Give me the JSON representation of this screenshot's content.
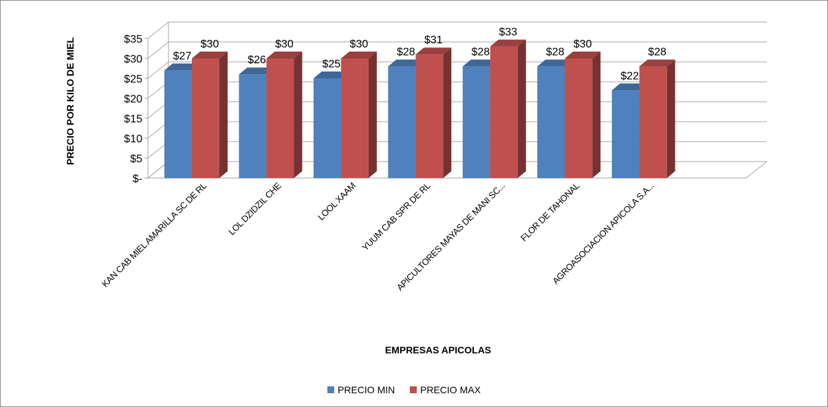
{
  "chart_data": {
    "type": "bar",
    "three_d": true,
    "title": "",
    "xlabel": "EMPRESAS  APICOLAS",
    "ylabel": "PRECIO POR KILO DE MIEL",
    "ylim": [
      0,
      35
    ],
    "yticks": [
      {
        "value": 0,
        "label": "$-"
      },
      {
        "value": 5,
        "label": "$5"
      },
      {
        "value": 10,
        "label": "$10"
      },
      {
        "value": 15,
        "label": "$15"
      },
      {
        "value": 20,
        "label": "$20"
      },
      {
        "value": 25,
        "label": "$25"
      },
      {
        "value": 30,
        "label": "$30"
      },
      {
        "value": 35,
        "label": "$35"
      }
    ],
    "grid": true,
    "legend_position": "bottom",
    "categories": [
      "KAN CAB MIEL AMARILLA SC DE RL",
      "LOL DZIDZIL CHE",
      "LOOL XAAM",
      "YUUM CAB SPR DE RL",
      "APICULTORES MAYAS DE MANI SC...",
      "FLOR DE TAHONAL",
      "AGROASOCIACION APICOLA S.A..."
    ],
    "series": [
      {
        "name": "PRECIO MIN",
        "color": "#4f81bd",
        "values": [
          27,
          26,
          25,
          28,
          28,
          28,
          22
        ],
        "labels": [
          "$27",
          "$26",
          "$25",
          "$28",
          "$28",
          "$28",
          "$22"
        ]
      },
      {
        "name": "PRECIO MAX",
        "color": "#c0504d",
        "values": [
          30,
          30,
          30,
          31,
          33,
          30,
          28
        ],
        "labels": [
          "$30",
          "$30",
          "$30",
          "$31",
          "$33",
          "$30",
          "$28"
        ]
      }
    ]
  }
}
